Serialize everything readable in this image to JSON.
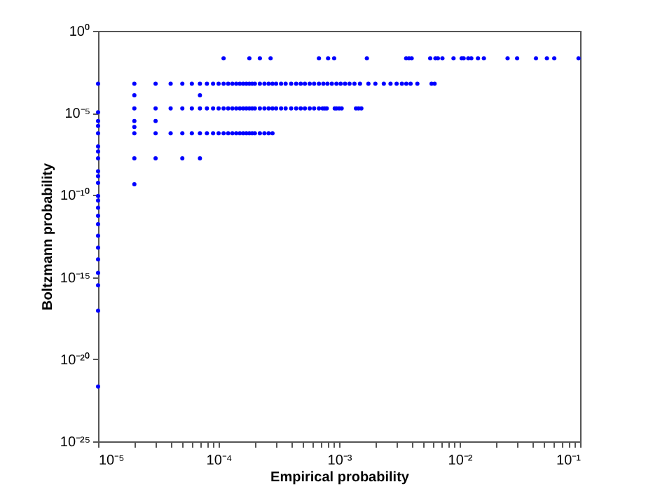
{
  "chart_data": {
    "type": "scatter",
    "xlabel": "Empirical probability",
    "ylabel": "Boltzmann probability",
    "log": "xy",
    "grid": false,
    "marker": "circle",
    "xlim": [
      1e-05,
      0.1
    ],
    "ylim": [
      1e-25,
      1
    ],
    "xticks": [
      {
        "value": 1e-05,
        "label": "10⁻⁵"
      },
      {
        "value": 2e-05,
        "label": null
      },
      {
        "value": 3e-05,
        "label": null
      },
      {
        "value": 4e-05,
        "label": null
      },
      {
        "value": 5e-05,
        "label": null
      },
      {
        "value": 6e-05,
        "label": null
      },
      {
        "value": 7e-05,
        "label": null
      },
      {
        "value": 8e-05,
        "label": null
      },
      {
        "value": 9e-05,
        "label": null
      },
      {
        "value": 0.0001,
        "label": "10⁻⁴"
      },
      {
        "value": 0.0002,
        "label": null
      },
      {
        "value": 0.0003,
        "label": null
      },
      {
        "value": 0.0004,
        "label": null
      },
      {
        "value": 0.0005,
        "label": null
      },
      {
        "value": 0.0006,
        "label": null
      },
      {
        "value": 0.0007,
        "label": null
      },
      {
        "value": 0.0008,
        "label": null
      },
      {
        "value": 0.0009,
        "label": null
      },
      {
        "value": 0.001,
        "label": "10⁻³"
      },
      {
        "value": 0.002,
        "label": null
      },
      {
        "value": 0.003,
        "label": null
      },
      {
        "value": 0.004,
        "label": null
      },
      {
        "value": 0.005,
        "label": null
      },
      {
        "value": 0.006,
        "label": null
      },
      {
        "value": 0.007,
        "label": null
      },
      {
        "value": 0.008,
        "label": null
      },
      {
        "value": 0.009,
        "label": null
      },
      {
        "value": 0.01,
        "label": "10⁻²"
      },
      {
        "value": 0.02,
        "label": null
      },
      {
        "value": 0.03,
        "label": null
      },
      {
        "value": 0.04,
        "label": null
      },
      {
        "value": 0.05,
        "label": null
      },
      {
        "value": 0.06,
        "label": null
      },
      {
        "value": 0.07,
        "label": null
      },
      {
        "value": 0.08,
        "label": null
      },
      {
        "value": 0.09,
        "label": null
      },
      {
        "value": 0.1,
        "label": "10⁻¹"
      }
    ],
    "yticks": [
      {
        "value": 1e-25,
        "label": "10⁻²⁵"
      },
      {
        "value": 1e-20,
        "label": "10⁻²⁰"
      },
      {
        "value": 1e-15,
        "label": "10⁻¹⁵"
      },
      {
        "value": 1e-10,
        "label": "10⁻¹⁰"
      },
      {
        "value": 1e-05,
        "label": "10⁻⁵"
      },
      {
        "value": 1,
        "label": "10⁰"
      }
    ],
    "series": [
      {
        "color": "#0000ff",
        "x": [
          0.00011,
          0.00018,
          0.00022,
          0.00027,
          0.00068,
          0.00081,
          0.00091,
          0.0017,
          0.0036,
          0.0038,
          0.004,
          0.0057,
          0.0063,
          0.0066,
          0.0072,
          0.0089,
          0.0104,
          0.0108,
          0.0118,
          0.0125,
          0.0142,
          0.0159,
          0.025,
          0.03,
          0.043,
          0.053,
          0.061,
          0.097,
          1e-05,
          2e-05,
          3e-05,
          4e-05,
          5e-05,
          6e-05,
          7e-05,
          8e-05,
          9e-05,
          0.0001,
          0.00011,
          0.00012,
          0.00013,
          0.00014,
          0.00015,
          0.00016,
          0.00017,
          0.00018,
          0.00019,
          0.0002,
          0.00022,
          0.00024,
          0.00026,
          0.00028,
          0.0003,
          0.00033,
          0.00036,
          0.0004,
          0.00044,
          0.00048,
          0.00052,
          0.00057,
          0.00062,
          0.00068,
          0.00074,
          0.0008,
          0.00087,
          0.00095,
          0.00103,
          0.00112,
          0.00122,
          0.00134,
          0.00149,
          0.00175,
          0.002,
          0.00235,
          0.00267,
          0.003,
          0.00332,
          0.00361,
          0.00392,
          0.00446,
          0.00585,
          0.0062,
          2e-05,
          3e-05,
          4e-05,
          5e-05,
          6e-05,
          7e-05,
          8e-05,
          9e-05,
          0.0001,
          0.00011,
          0.00012,
          0.00013,
          0.00014,
          0.00015,
          0.00016,
          0.00017,
          0.00018,
          0.00019,
          0.0002,
          0.00022,
          0.00024,
          0.00026,
          0.00028,
          0.0003,
          0.00033,
          0.00036,
          0.0004,
          0.00044,
          0.00048,
          0.00052,
          0.00057,
          0.00062,
          0.00068,
          0.00073,
          0.00076,
          0.00079,
          0.00092,
          0.00095,
          0.001,
          0.00105,
          0.00138,
          0.00145,
          0.00153,
          2e-05,
          3e-05,
          4e-05,
          5e-05,
          6e-05,
          7e-05,
          8e-05,
          9e-05,
          0.0001,
          0.00011,
          0.00012,
          0.00013,
          0.00014,
          0.00015,
          0.00016,
          0.00017,
          0.00018,
          0.00019,
          0.0002,
          0.00022,
          0.00024,
          0.00026,
          0.00028,
          2e-05,
          3e-05,
          5e-05,
          7e-05,
          1e-05,
          1e-05,
          1e-05,
          1e-05,
          1e-05,
          1e-05,
          1e-05,
          1e-05,
          1e-05,
          1e-05,
          1e-05,
          1e-05,
          1e-05,
          1e-05,
          1e-05,
          1e-05,
          1e-05,
          1e-05,
          1e-05,
          1e-05,
          1e-05,
          1e-05,
          2e-05,
          2e-05,
          2e-05,
          2e-05,
          3e-05,
          7e-05
        ],
        "values": [
          0.021,
          0.021,
          0.021,
          0.021,
          0.021,
          0.021,
          0.021,
          0.021,
          0.021,
          0.021,
          0.021,
          0.021,
          0.021,
          0.021,
          0.021,
          0.021,
          0.021,
          0.021,
          0.021,
          0.021,
          0.021,
          0.021,
          0.021,
          0.021,
          0.021,
          0.021,
          0.021,
          0.021,
          0.0006,
          0.0006,
          0.0006,
          0.0006,
          0.0006,
          0.0006,
          0.0006,
          0.0006,
          0.0006,
          0.0006,
          0.0006,
          0.0006,
          0.0006,
          0.0006,
          0.0006,
          0.0006,
          0.0006,
          0.0006,
          0.0006,
          0.0006,
          0.0006,
          0.0006,
          0.0006,
          0.0006,
          0.0006,
          0.0006,
          0.0006,
          0.0006,
          0.0006,
          0.0006,
          0.0006,
          0.0006,
          0.0006,
          0.0006,
          0.0006,
          0.0006,
          0.0006,
          0.0006,
          0.0006,
          0.0006,
          0.0006,
          0.0006,
          0.0006,
          0.0006,
          0.0006,
          0.0006,
          0.0006,
          0.0006,
          0.0006,
          0.0006,
          0.0006,
          0.0006,
          0.0006,
          0.0006,
          1.9e-05,
          1.9e-05,
          1.9e-05,
          1.9e-05,
          1.9e-05,
          1.9e-05,
          1.9e-05,
          1.9e-05,
          1.9e-05,
          1.9e-05,
          1.9e-05,
          1.9e-05,
          1.9e-05,
          1.9e-05,
          1.9e-05,
          1.9e-05,
          1.9e-05,
          1.9e-05,
          1.9e-05,
          1.9e-05,
          1.9e-05,
          1.9e-05,
          1.9e-05,
          1.9e-05,
          1.9e-05,
          1.9e-05,
          1.9e-05,
          1.9e-05,
          1.9e-05,
          1.9e-05,
          1.9e-05,
          1.9e-05,
          1.9e-05,
          1.9e-05,
          1.9e-05,
          1.9e-05,
          1.9e-05,
          1.9e-05,
          1.9e-05,
          1.9e-05,
          1.9e-05,
          1.9e-05,
          1.9e-05,
          5.8e-07,
          5.8e-07,
          5.8e-07,
          5.8e-07,
          5.8e-07,
          5.8e-07,
          5.8e-07,
          5.8e-07,
          5.8e-07,
          5.8e-07,
          5.8e-07,
          5.8e-07,
          5.8e-07,
          5.8e-07,
          5.8e-07,
          5.8e-07,
          5.8e-07,
          5.8e-07,
          5.8e-07,
          5.8e-07,
          5.8e-07,
          5.8e-07,
          5.8e-07,
          1.7e-08,
          1.7e-08,
          1.7e-08,
          1.7e-08,
          1.1e-05,
          3.2e-06,
          1.6e-06,
          5.8e-07,
          9.1e-08,
          4.5e-08,
          1.7e-08,
          2.8e-09,
          1.4e-09,
          5.5e-10,
          8.7e-11,
          4.6e-11,
          1.7e-11,
          5.5e-12,
          1.7e-12,
          3.3e-13,
          6.3e-14,
          1.2e-14,
          1.8e-15,
          3.2e-16,
          9.1e-18,
          2.2e-22,
          0.00012,
          3.2e-06,
          1.4e-06,
          4.5e-10,
          3.2e-06,
          0.00012
        ]
      }
    ]
  }
}
